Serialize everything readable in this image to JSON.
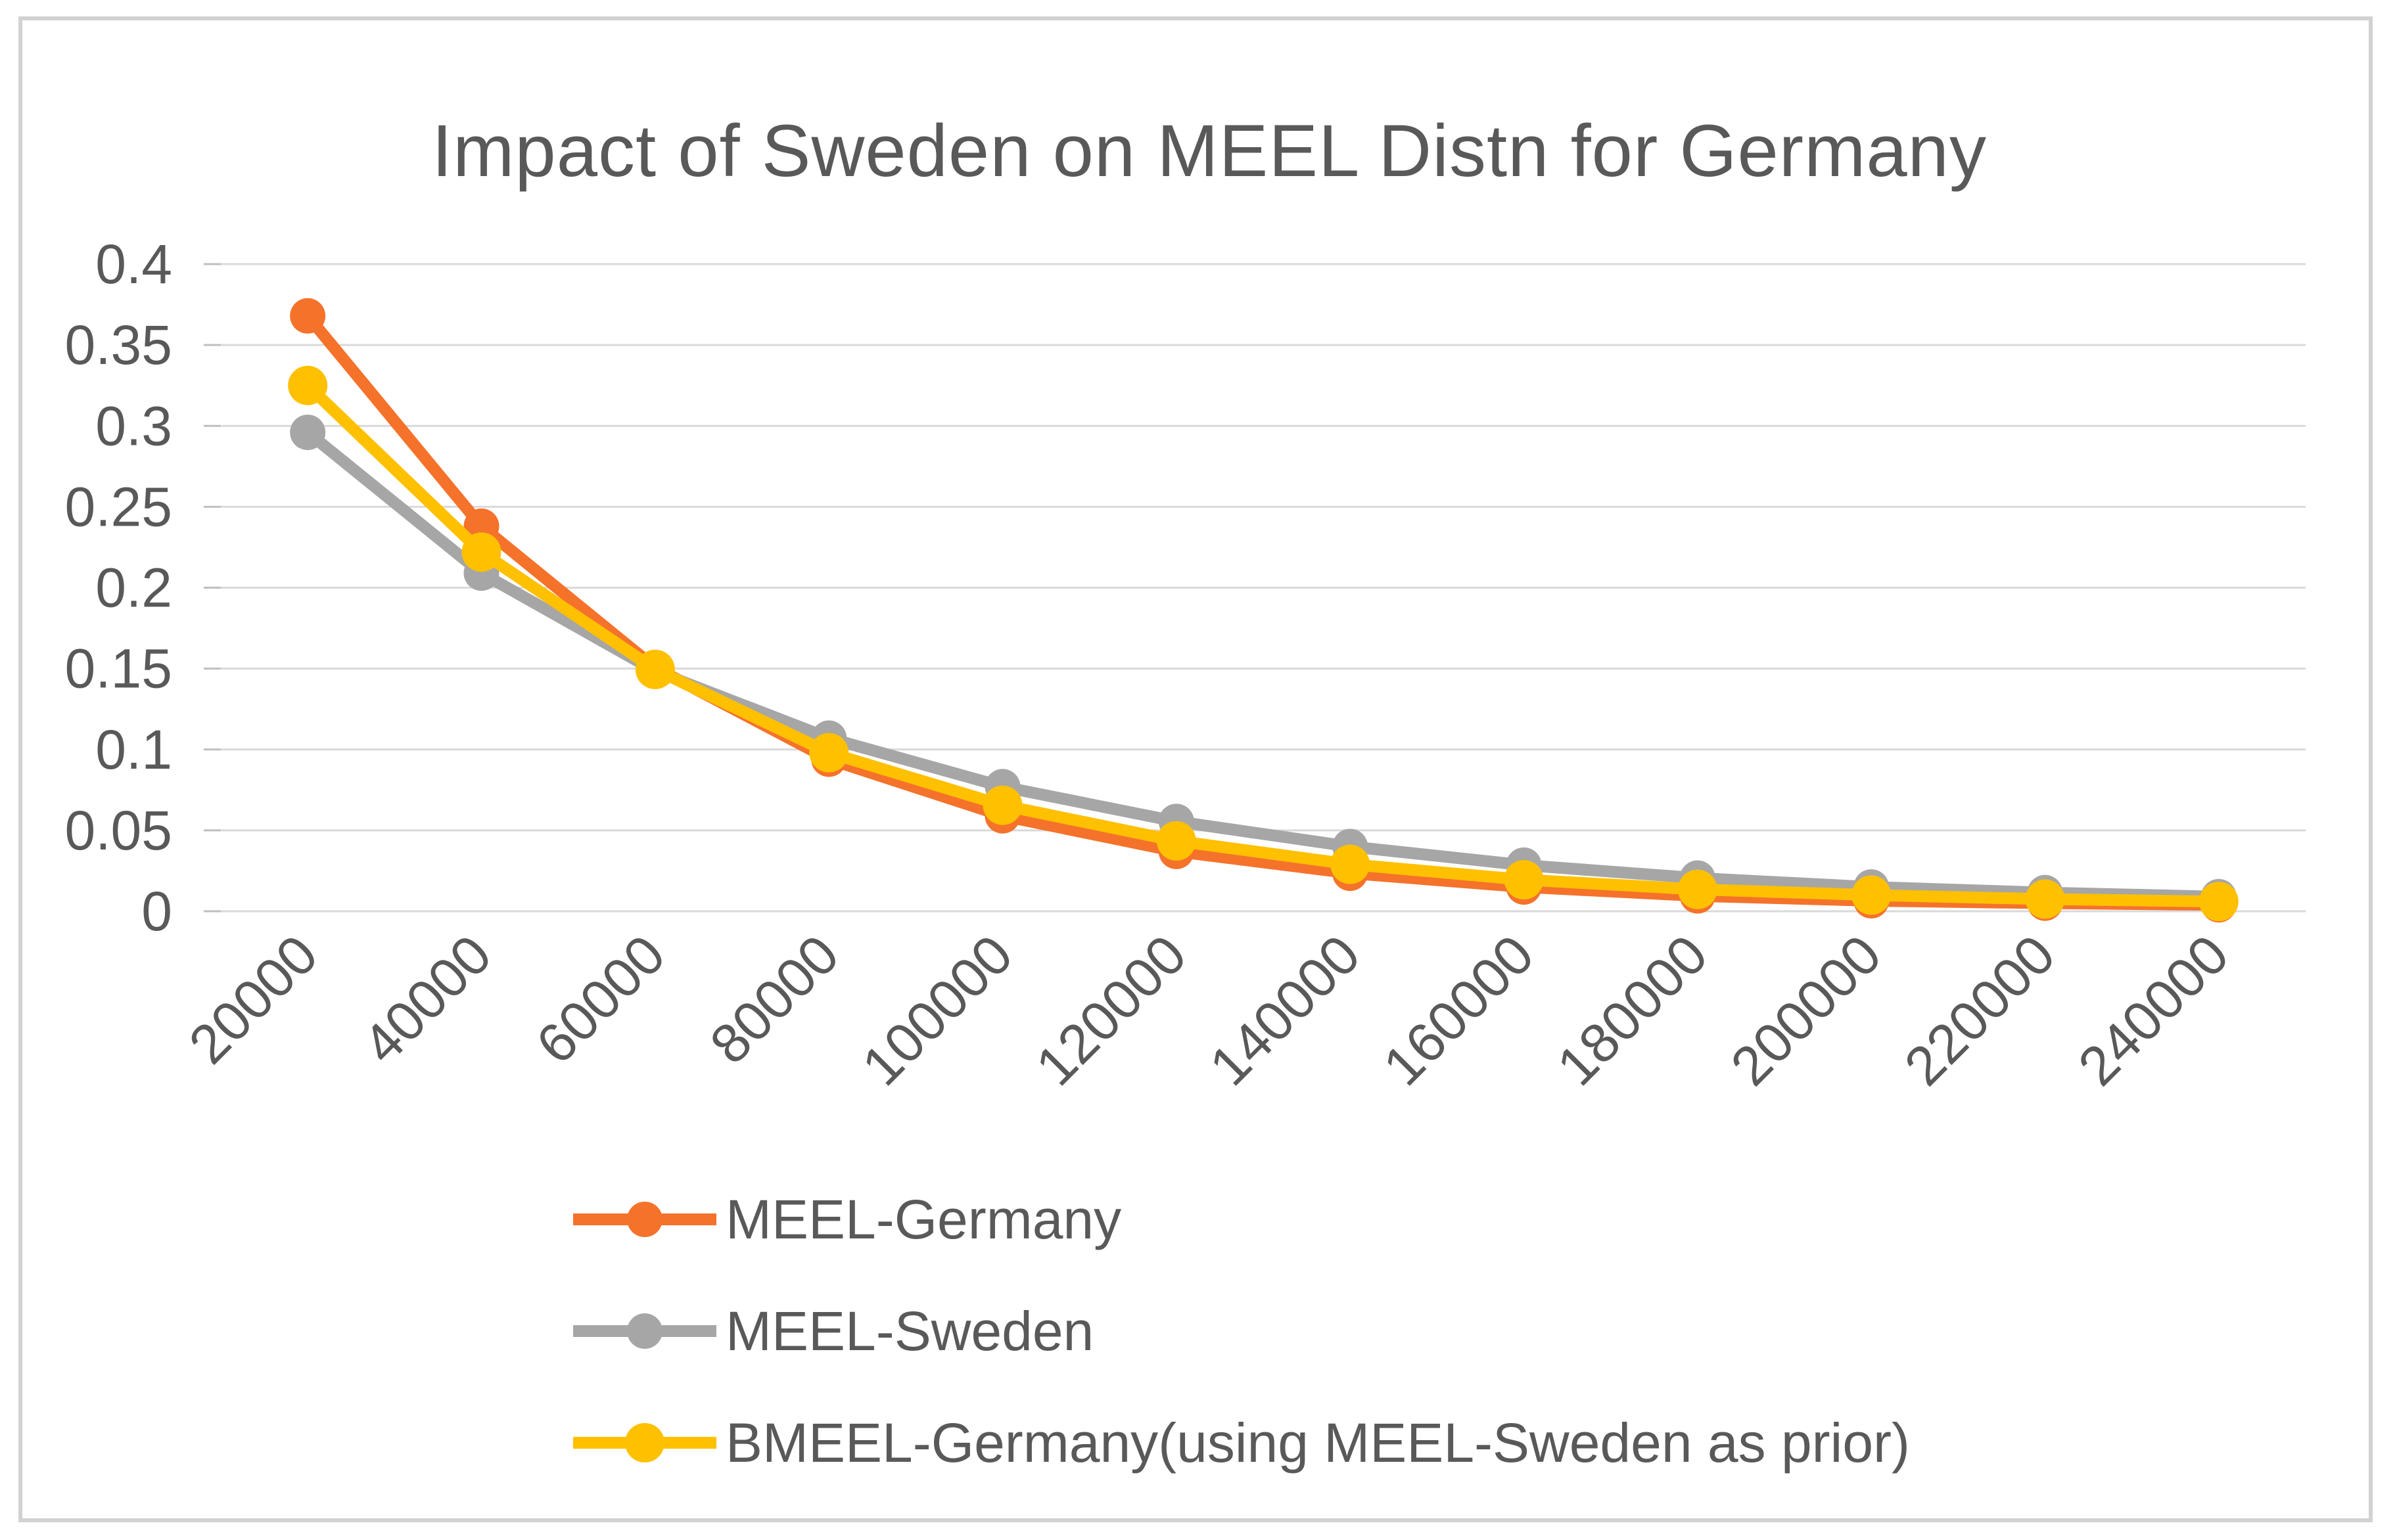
{
  "window": {
    "background": "#ffffff",
    "border_color": "#d2d2d2"
  },
  "chart_data": {
    "type": "line",
    "title": "Impact of Sweden on MEEL Distn for Germany",
    "categories": [
      20000,
      40000,
      60000,
      80000,
      100000,
      120000,
      140000,
      160000,
      180000,
      200000,
      220000,
      240000
    ],
    "series": [
      {
        "name": "MEEL-Germany",
        "color": "#F5722B",
        "marker": "circle",
        "values": [
          0.368,
          0.238,
          0.1505,
          0.094,
          0.059,
          0.037,
          0.0235,
          0.015,
          0.0095,
          0.0065,
          0.005,
          0.004
        ]
      },
      {
        "name": "MEEL-Sweden",
        "color": "#A6A6A6",
        "marker": "circle",
        "values": [
          0.296,
          0.209,
          0.1485,
          0.107,
          0.077,
          0.0555,
          0.04,
          0.0285,
          0.0205,
          0.015,
          0.0115,
          0.009
        ]
      },
      {
        "name": "BMEEL-Germany(using MEEL-Sweden as prior)",
        "color": "#FFC000",
        "marker": "circle",
        "values": [
          0.325,
          0.222,
          0.1495,
          0.098,
          0.0655,
          0.0435,
          0.029,
          0.0195,
          0.0135,
          0.01,
          0.0075,
          0.006
        ]
      }
    ],
    "x_axis": {
      "tick_labels": [
        "20000",
        "40000",
        "60000",
        "80000",
        "100000",
        "120000",
        "140000",
        "160000",
        "180000",
        "200000",
        "220000",
        "240000"
      ],
      "label_rotation_deg": -45
    },
    "y_axis": {
      "min": 0,
      "max": 0.4,
      "step": 0.05,
      "tick_labels": [
        "0.4",
        "0.35",
        "0.3",
        "0.25",
        "0.2",
        "0.15",
        "0.1",
        "0.05",
        "0"
      ]
    },
    "grid": true,
    "gridline_color": "#D9D9D9",
    "tick_color": "#BFBFBF",
    "text_color": "#595959",
    "legend_position": "bottom-left"
  }
}
